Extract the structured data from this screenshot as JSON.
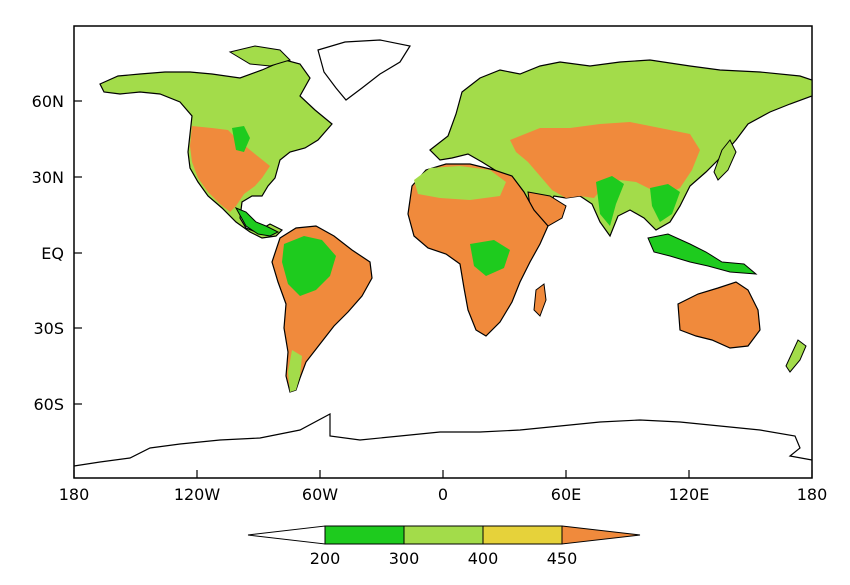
{
  "map": {
    "lat_labels": [
      "60N",
      "30N",
      "EQ",
      "30S",
      "60S"
    ],
    "lat_values": [
      60,
      30,
      0,
      -30,
      -60
    ],
    "lon_labels": [
      "180",
      "120W",
      "60W",
      "0",
      "60E",
      "120E",
      "180"
    ],
    "lon_values": [
      -180,
      -120,
      -60,
      0,
      60,
      120,
      180
    ],
    "lat_range": [
      -90,
      90
    ],
    "lon_range": [
      -180,
      180
    ]
  },
  "colorbar": {
    "labels": [
      "200",
      "300",
      "400",
      "450"
    ],
    "bins": [
      {
        "range": "<200",
        "color": "#ffffff"
      },
      {
        "range": "200-300",
        "color": "#1ecb1e"
      },
      {
        "range": "300-400",
        "color": "#a3dc4a"
      },
      {
        "range": "400-450",
        "color": "#e6d23a"
      },
      {
        "range": ">450",
        "color": "#f08a3c"
      }
    ]
  },
  "colors": {
    "land_dry": "#f08a3c",
    "land_mid": "#a3dc4a",
    "land_wet": "#1ecb1e",
    "coast": "#000000"
  }
}
